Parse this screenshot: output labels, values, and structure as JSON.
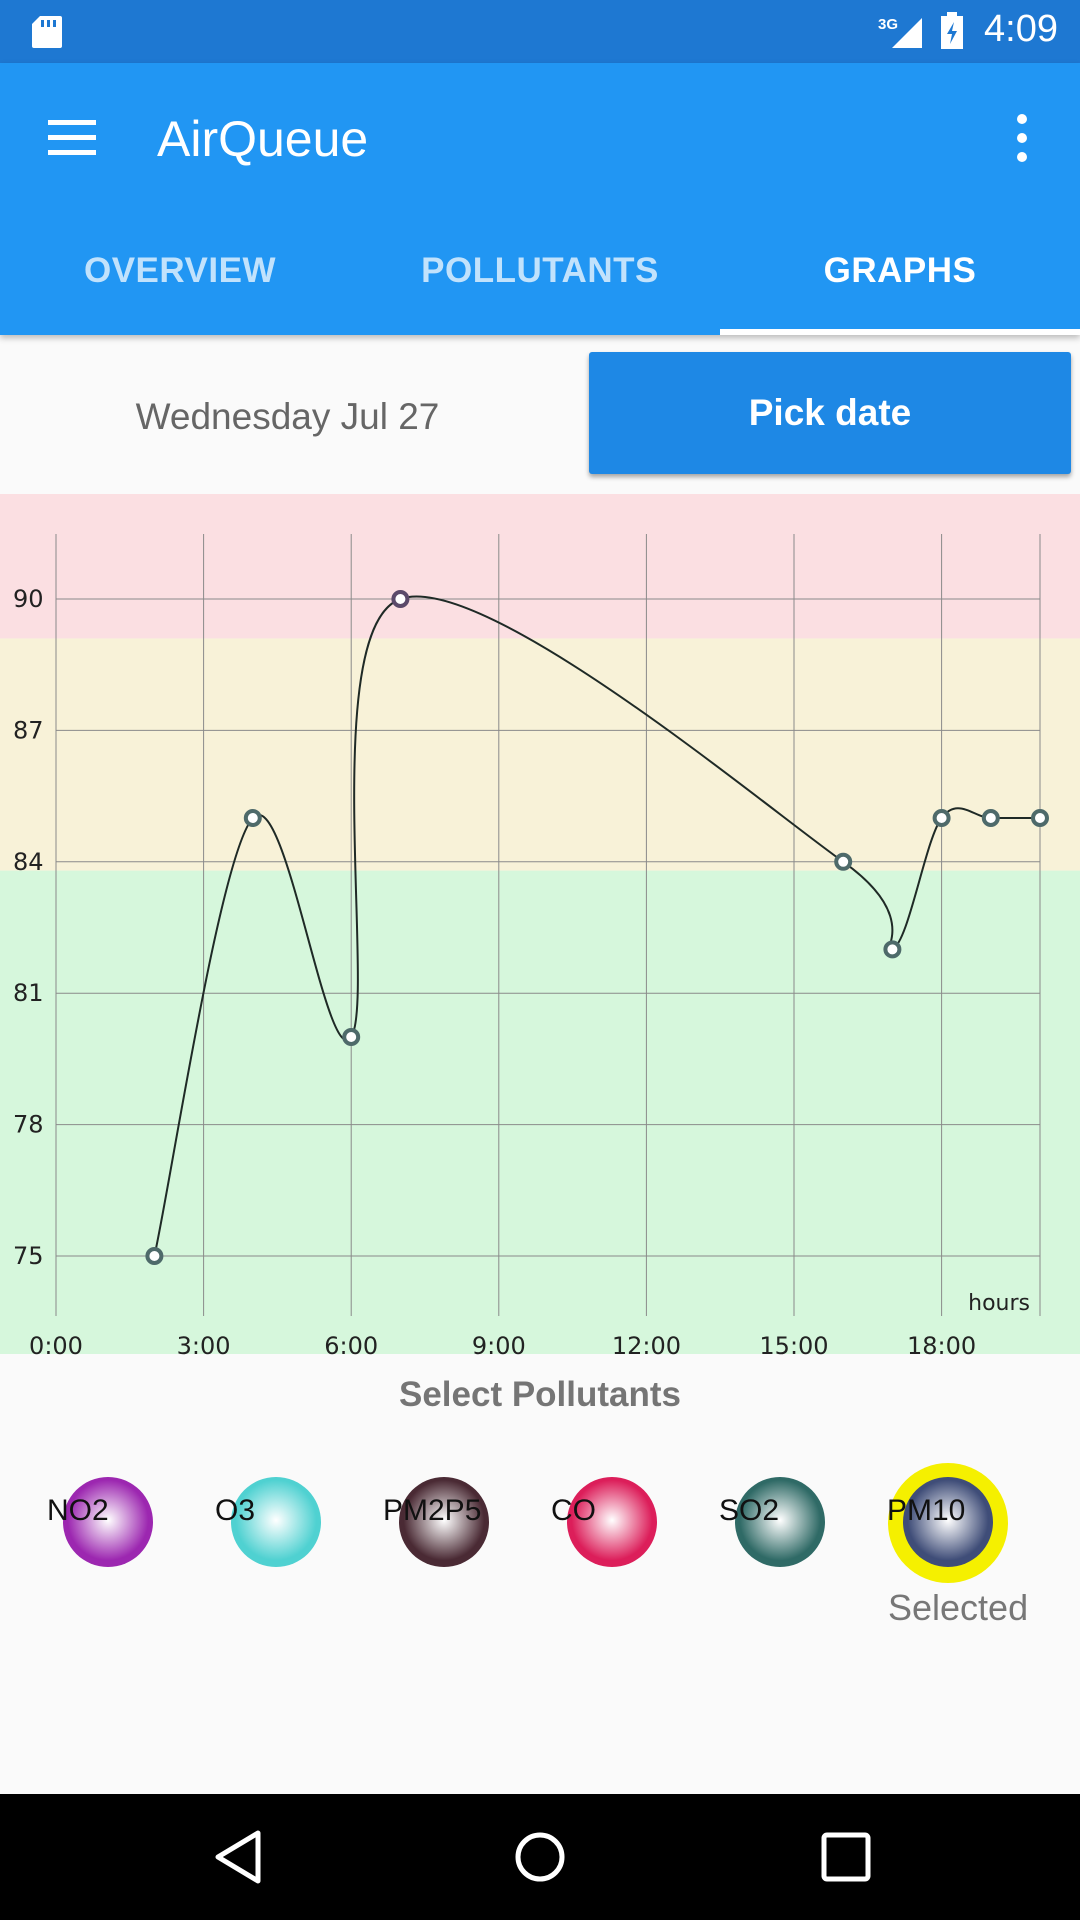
{
  "status_bar": {
    "time": "4:09",
    "network": "3G",
    "icons": [
      "sd-card-icon",
      "signal-icon",
      "battery-icon"
    ]
  },
  "app_bar": {
    "title": "AirQueue",
    "menu_icon": "hamburger-menu-icon",
    "overflow_icon": "overflow-menu-icon",
    "tabs": [
      {
        "label": "OVERVIEW",
        "active": false
      },
      {
        "label": "POLLUTANTS",
        "active": false
      },
      {
        "label": "GRAPHS",
        "active": true
      }
    ]
  },
  "date_row": {
    "date": "Wednesday Jul 27",
    "pick_button": "Pick date"
  },
  "chart_data": {
    "type": "line",
    "x_label": "hours",
    "x_ticks": [
      "0:00",
      "3:00",
      "6:00",
      "9:00",
      "12:00",
      "15:00",
      "18:00"
    ],
    "y_ticks": [
      75,
      78,
      81,
      84,
      87,
      90
    ],
    "xlim_hours": [
      0,
      20
    ],
    "ylim": [
      73.5,
      92
    ],
    "bands": [
      {
        "name": "green",
        "from": 73.5,
        "to": 83.8,
        "color": "#d6f7dc"
      },
      {
        "name": "yellow",
        "from": 83.8,
        "to": 89.1,
        "color": "#f8f2d8"
      },
      {
        "name": "red",
        "from": 89.1,
        "to": 92,
        "color": "#fbdfe2"
      }
    ],
    "series": [
      {
        "x_hours": [
          2,
          4,
          6,
          7,
          16,
          17,
          18,
          19,
          20
        ],
        "values": [
          75,
          85,
          80,
          90,
          84,
          82,
          85,
          85,
          85
        ]
      }
    ],
    "grid": true
  },
  "pollutants": {
    "title": "Select Pollutants",
    "items": [
      {
        "label": "NO2",
        "color": "#9c27b0"
      },
      {
        "label": "O3",
        "color": "#4fd1d1"
      },
      {
        "label": "PM2P5",
        "color": "#4a2a34"
      },
      {
        "label": "CO",
        "color": "#dc1e5a"
      },
      {
        "label": "SO2",
        "color": "#2f6a66"
      },
      {
        "label": "PM10",
        "color": "#3f4d78"
      }
    ],
    "selected_index": 5,
    "selected_label": "Selected",
    "selected_ring_color": "#f5f000"
  },
  "nav_bar": {
    "icons": [
      "back-icon",
      "home-icon",
      "recent-apps-icon"
    ]
  }
}
